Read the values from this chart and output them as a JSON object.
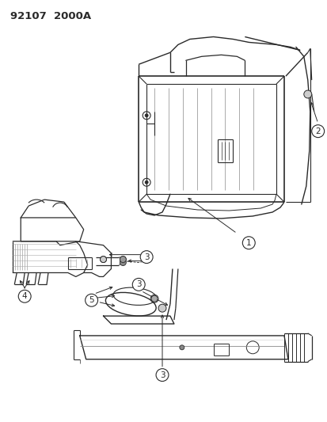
{
  "title_code": "92107  2000A",
  "bg_color": "#ffffff",
  "line_color": "#2a2a2a",
  "figsize": [
    4.14,
    5.33
  ],
  "dpi": 100,
  "label_fontsize": 7.5
}
